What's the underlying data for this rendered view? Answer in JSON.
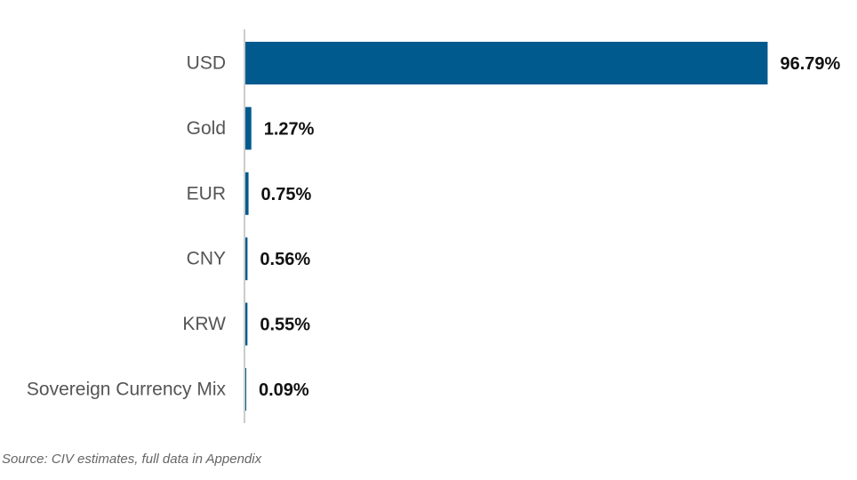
{
  "chart_data": {
    "type": "bar",
    "orientation": "horizontal",
    "categories": [
      "USD",
      "Gold",
      "EUR",
      "CNY",
      "KRW",
      "Sovereign Currency Mix"
    ],
    "values": [
      96.79,
      1.27,
      0.75,
      0.56,
      0.55,
      0.09
    ],
    "value_labels": [
      "96.79%",
      "1.27%",
      "0.75%",
      "0.56%",
      "0.55%",
      "0.09%"
    ],
    "unit": "%",
    "xlim": [
      0,
      100
    ],
    "grid": false,
    "bar_color": "#005A8E",
    "axis_color": "#CCCCCC"
  },
  "source_note": "Source: CIV estimates, full data in Appendix"
}
